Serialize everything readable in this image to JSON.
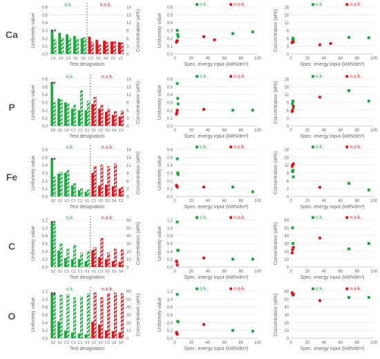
{
  "colors": {
    "ok": "#1aab3f",
    "nok": "#e3141b",
    "axis": "#bfbfbf",
    "grid": "#e6e6e6",
    "text": "#595959"
  },
  "legend": {
    "ok": "o.k.",
    "nok": "n.o.k."
  },
  "axis_labels": {
    "uniformity": "Uniformity value",
    "concentration": "Concentration (at%)",
    "test_designation": "Test designation",
    "energy": "Spec. energy input (kWh/dm²)"
  },
  "row_labels": [
    "Ca",
    "P",
    "Fe",
    "C",
    "O"
  ],
  "chart_data": [
    {
      "type": "bar",
      "element": "Ca",
      "categories": [
        "C1",
        "V3",
        "C2",
        "S1",
        "S2",
        "C3",
        "S3",
        "S4",
        "V2",
        "V1"
      ],
      "status": [
        "ok",
        "ok",
        "ok",
        "ok",
        "ok",
        "nok",
        "nok",
        "nok",
        "nok",
        "nok"
      ],
      "series": [
        {
          "name": "Uniformity value",
          "axis": "left",
          "values": [
            0.3,
            0.27,
            0.25,
            0.23,
            0.2,
            0.22,
            0.18,
            0.17,
            0.16,
            0.15
          ]
        },
        {
          "name": "Concentration (at%)",
          "axis": "right",
          "values": [
            5.5,
            6,
            6,
            5.8,
            6.3,
            4.5,
            3.5,
            4.5,
            4.7,
            4.3
          ]
        }
      ],
      "ylim_left": [
        0,
        0.6
      ],
      "yticks_left": [
        0,
        0.1,
        0.2,
        0.3,
        0.4,
        0.5,
        0.6
      ],
      "ylim_right": [
        0,
        18
      ],
      "yticks_right": [
        0,
        3,
        6,
        9,
        12,
        15,
        18
      ]
    },
    {
      "type": "scatter",
      "element": "Ca",
      "ylabel": "Uniformity value",
      "xlim": [
        0,
        100
      ],
      "ylim": [
        0,
        0.6
      ],
      "xticks": [
        0,
        20,
        40,
        60,
        80,
        100
      ],
      "yticks": [
        0,
        0.1,
        0.2,
        0.3,
        0.4,
        0.5,
        0.6
      ],
      "series": [
        {
          "name": "o.k.",
          "points": [
            [
              3,
              0.3
            ],
            [
              3.5,
              0.25
            ],
            [
              4,
              0.22
            ],
            [
              70,
              0.26
            ],
            [
              94,
              0.28
            ]
          ]
        },
        {
          "name": "n.o.k.",
          "points": [
            [
              2,
              0.15
            ],
            [
              2.5,
              0.16
            ],
            [
              3,
              0.17
            ],
            [
              35,
              0.22
            ],
            [
              48,
              0.18
            ]
          ]
        }
      ]
    },
    {
      "type": "scatter",
      "element": "Ca",
      "ylabel": "Concentration (at%)",
      "xlim": [
        0,
        100
      ],
      "ylim": [
        0,
        18
      ],
      "xticks": [
        0,
        20,
        40,
        60,
        80,
        100
      ],
      "yticks": [
        0,
        3,
        6,
        9,
        12,
        15,
        18
      ],
      "series": [
        {
          "name": "o.k.",
          "points": [
            [
              2,
              5.2
            ],
            [
              2.5,
              6
            ],
            [
              3,
              5.5
            ],
            [
              70,
              6.3
            ],
            [
              94,
              6.2
            ]
          ]
        },
        {
          "name": "n.o.k.",
          "points": [
            [
              1.5,
              4.3
            ],
            [
              2,
              4.5
            ],
            [
              3,
              4.7
            ],
            [
              35,
              3.5
            ],
            [
              48,
              4
            ]
          ]
        }
      ]
    },
    {
      "type": "bar",
      "element": "P",
      "categories": [
        "S2",
        "S1",
        "V3",
        "C1",
        "C2",
        "C1",
        "V1",
        "V2",
        "S3",
        "S4",
        "C3"
      ],
      "status": [
        "ok",
        "ok",
        "ok",
        "ok",
        "ok",
        "ok",
        "nok",
        "nok",
        "nok",
        "nok",
        "nok"
      ],
      "series": [
        {
          "name": "Uniformity value",
          "axis": "left",
          "values": [
            0.55,
            0.35,
            0.3,
            0.22,
            0.2,
            0.2,
            0.28,
            0.22,
            0.18,
            0.14,
            0.12
          ]
        },
        {
          "name": "Concentration (at%)",
          "axis": "right",
          "values": [
            9,
            10,
            8.5,
            8,
            13.5,
            9.5,
            11,
            8,
            6.5,
            5.5,
            5.8
          ]
        }
      ],
      "ylim_left": [
        0,
        0.6
      ],
      "yticks_left": [
        0,
        0.1,
        0.2,
        0.3,
        0.4,
        0.5,
        0.6
      ],
      "ylim_right": [
        0,
        18
      ],
      "yticks_right": [
        0,
        3,
        6,
        9,
        12,
        15,
        18
      ]
    },
    {
      "type": "scatter",
      "element": "P",
      "ylabel": "Uniformity value",
      "xlim": [
        0,
        100
      ],
      "ylim": [
        0,
        0.6
      ],
      "xticks": [
        0,
        20,
        40,
        60,
        80,
        100
      ],
      "yticks": [
        0,
        0.1,
        0.2,
        0.3,
        0.4,
        0.5,
        0.6
      ],
      "series": [
        {
          "name": "o.k.",
          "points": [
            [
              3,
              0.54
            ],
            [
              3.5,
              0.35
            ],
            [
              4,
              0.28
            ],
            [
              70,
              0.2
            ],
            [
              94,
              0.2
            ]
          ]
        },
        {
          "name": "n.o.k.",
          "points": [
            [
              2,
              0.15
            ],
            [
              2.5,
              0.17
            ],
            [
              3,
              0.2
            ],
            [
              35,
              0.21
            ]
          ]
        }
      ]
    },
    {
      "type": "scatter",
      "element": "P",
      "ylabel": "Concentration (at%)",
      "xlim": [
        0,
        100
      ],
      "ylim": [
        0,
        18
      ],
      "xticks": [
        0,
        20,
        40,
        60,
        80,
        100
      ],
      "yticks": [
        0,
        3,
        6,
        9,
        12,
        15,
        18
      ],
      "series": [
        {
          "name": "o.k.",
          "points": [
            [
              2,
              8.5
            ],
            [
              2.5,
              9.5
            ],
            [
              3,
              7
            ],
            [
              70,
              13.5
            ],
            [
              94,
              9.5
            ]
          ]
        },
        {
          "name": "n.o.k.",
          "points": [
            [
              1.5,
              5.5
            ],
            [
              2,
              6
            ],
            [
              3,
              7.5
            ],
            [
              35,
              11
            ]
          ]
        }
      ]
    },
    {
      "type": "bar",
      "element": "Fe",
      "categories": [
        "S2",
        "S1",
        "V3",
        "C1",
        "C2",
        "V1",
        "C1",
        "V2",
        "S3",
        "S4",
        "C3"
      ],
      "status": [
        "ok",
        "ok",
        "ok",
        "ok",
        "ok",
        "ok",
        "nok",
        "nok",
        "nok",
        "nok",
        "nok"
      ],
      "series": [
        {
          "name": "Uniformity value",
          "axis": "left",
          "values": [
            0.48,
            0.29,
            0.3,
            0.14,
            0.08,
            0.06,
            0.3,
            0.14,
            0.15,
            0.13,
            0.1
          ]
        },
        {
          "name": "Concentration (at%)",
          "axis": "right",
          "values": [
            7.5,
            9.5,
            10,
            5,
            3,
            2.5,
            11.5,
            12,
            11.5,
            12.5,
            3.5
          ]
        }
      ],
      "ylim_left": [
        0,
        0.6
      ],
      "yticks_left": [
        0,
        0.1,
        0.2,
        0.3,
        0.4,
        0.5,
        0.6
      ],
      "ylim_right": [
        0,
        18
      ],
      "yticks_right": [
        0,
        3,
        6,
        9,
        12,
        15,
        18
      ]
    },
    {
      "type": "scatter",
      "element": "Fe",
      "ylabel": "Uniformity value",
      "xlim": [
        0,
        100
      ],
      "ylim": [
        0,
        0.6
      ],
      "xticks": [
        0,
        20,
        40,
        60,
        80,
        100
      ],
      "yticks": [
        0,
        0.1,
        0.2,
        0.3,
        0.4,
        0.5,
        0.6
      ],
      "series": [
        {
          "name": "o.k.",
          "points": [
            [
              3,
              0.48
            ],
            [
              3.5,
              0.3
            ],
            [
              4,
              0.28
            ],
            [
              70,
              0.12
            ],
            [
              94,
              0.06
            ]
          ]
        },
        {
          "name": "n.o.k.",
          "points": [
            [
              2,
              0.14
            ],
            [
              2.5,
              0.13
            ],
            [
              3,
              0.12
            ],
            [
              35,
              0.12
            ]
          ]
        }
      ]
    },
    {
      "type": "scatter",
      "element": "Fe",
      "ylabel": "Concentration (at%)",
      "xlim": [
        0,
        100
      ],
      "ylim": [
        0,
        18
      ],
      "xticks": [
        0,
        20,
        40,
        60,
        80,
        100
      ],
      "yticks": [
        0,
        3,
        6,
        9,
        12,
        15,
        18
      ],
      "series": [
        {
          "name": "o.k.",
          "points": [
            [
              2,
              9.5
            ],
            [
              2.5,
              10
            ],
            [
              3,
              7.5
            ],
            [
              70,
              5
            ],
            [
              94,
              2.5
            ]
          ]
        },
        {
          "name": "n.o.k.",
          "points": [
            [
              1.5,
              11.5
            ],
            [
              2,
              12
            ],
            [
              3,
              12.5
            ],
            [
              35,
              3.5
            ]
          ]
        }
      ]
    },
    {
      "type": "bar",
      "element": "C",
      "categories": [
        "S2",
        "S1",
        "C1",
        "C2",
        "C1",
        "V3",
        "V1",
        "C3",
        "V2",
        "S3",
        "S4"
      ],
      "status": [
        "ok",
        "ok",
        "ok",
        "ok",
        "ok",
        "ok",
        "nok",
        "nok",
        "nok",
        "nok",
        "nok"
      ],
      "series": [
        {
          "name": "Uniformity value",
          "axis": "left",
          "values": [
            1.15,
            0.42,
            0.23,
            0.2,
            0.2,
            0.15,
            0.43,
            0.25,
            0.2,
            0.15,
            0.13
          ]
        },
        {
          "name": "Concentration (at%)",
          "axis": "right",
          "values": [
            55,
            30,
            23,
            28,
            18,
            20,
            25,
            37,
            18,
            23,
            22
          ]
        }
      ],
      "ylim_left": [
        0,
        1.2
      ],
      "yticks_left": [
        0,
        0.2,
        0.4,
        0.6,
        0.8,
        1.0,
        1.2
      ],
      "ylim_right": [
        0,
        60
      ],
      "yticks_right": [
        0,
        10,
        20,
        30,
        40,
        50,
        60
      ]
    },
    {
      "type": "scatter",
      "element": "C",
      "ylabel": "Uniformity value",
      "xlim": [
        0,
        100
      ],
      "ylim": [
        0,
        1.2
      ],
      "xticks": [
        0,
        20,
        40,
        60,
        80,
        100
      ],
      "yticks": [
        0,
        0.2,
        0.4,
        0.6,
        0.8,
        1.0,
        1.2
      ],
      "series": [
        {
          "name": "o.k.",
          "points": [
            [
              3,
              1.15
            ],
            [
              3.5,
              0.43
            ],
            [
              4,
              0.42
            ],
            [
              70,
              0.2
            ],
            [
              94,
              0.2
            ]
          ]
        },
        {
          "name": "n.o.k.",
          "points": [
            [
              2,
              0.15
            ],
            [
              2.5,
              0.13
            ],
            [
              3,
              0.05
            ],
            [
              35,
              0.23
            ]
          ]
        }
      ]
    },
    {
      "type": "scatter",
      "element": "C",
      "ylabel": "Concentration (at%)",
      "xlim": [
        0,
        100
      ],
      "ylim": [
        0,
        60
      ],
      "xticks": [
        0,
        20,
        40,
        60,
        80,
        100
      ],
      "yticks": [
        0,
        10,
        20,
        30,
        40,
        50,
        60
      ],
      "series": [
        {
          "name": "o.k.",
          "points": [
            [
              2,
              50
            ],
            [
              2.5,
              30
            ],
            [
              3,
              25
            ],
            [
              70,
              23
            ],
            [
              94,
              30
            ]
          ]
        },
        {
          "name": "n.o.k.",
          "points": [
            [
              1.5,
              18
            ],
            [
              2,
              22
            ],
            [
              3,
              25
            ],
            [
              35,
              37
            ]
          ]
        }
      ]
    },
    {
      "type": "bar",
      "element": "O",
      "categories": [
        "S2",
        "S1",
        "C2",
        "C1",
        "C1",
        "V3",
        "V1",
        "V2",
        "C3",
        "S3",
        "S4"
      ],
      "status": [
        "ok",
        "ok",
        "ok",
        "ok",
        "ok",
        "ok",
        "nok",
        "nok",
        "nok",
        "nok",
        "nok"
      ],
      "series": [
        {
          "name": "Uniformity value",
          "axis": "left",
          "values": [
            1.15,
            0.43,
            0.2,
            0.15,
            0.12,
            0.1,
            0.42,
            0.35,
            0.2,
            0.18,
            0.15
          ]
        },
        {
          "name": "Concentration (at%)",
          "axis": "right",
          "values": [
            57,
            55,
            56,
            52,
            53,
            57,
            58,
            52,
            57,
            58,
            57
          ]
        }
      ],
      "ylim_left": [
        0,
        1.2
      ],
      "yticks_left": [
        0,
        0.2,
        0.4,
        0.6,
        0.8,
        1.0,
        1.2
      ],
      "ylim_right": [
        0,
        60
      ],
      "yticks_right": [
        0,
        10,
        20,
        30,
        40,
        50,
        60
      ]
    },
    {
      "type": "scatter",
      "element": "O",
      "ylabel": "Uniformity value",
      "xlim": [
        0,
        100
      ],
      "ylim": [
        0,
        1.2
      ],
      "xticks": [
        0,
        20,
        40,
        60,
        80,
        100
      ],
      "yticks": [
        0,
        0.2,
        0.4,
        0.6,
        0.8,
        1.0,
        1.2
      ],
      "series": [
        {
          "name": "o.k.",
          "points": [
            [
              3,
              1.12
            ],
            [
              3.5,
              0.43
            ],
            [
              4,
              0.42
            ],
            [
              70,
              0.2
            ],
            [
              94,
              0.18
            ]
          ]
        },
        {
          "name": "n.o.k.",
          "points": [
            [
              2,
              0.15
            ],
            [
              2.5,
              0.12
            ],
            [
              3,
              0.1
            ],
            [
              35,
              0.35
            ]
          ]
        }
      ]
    },
    {
      "type": "scatter",
      "element": "O",
      "ylabel": "Concentration (at%)",
      "xlim": [
        0,
        100
      ],
      "ylim": [
        0,
        60
      ],
      "xticks": [
        0,
        20,
        40,
        60,
        80,
        100
      ],
      "yticks": [
        0,
        10,
        20,
        30,
        40,
        50,
        60
      ],
      "series": [
        {
          "name": "o.k.",
          "points": [
            [
              2,
              57
            ],
            [
              2.5,
              55
            ],
            [
              3,
              56
            ],
            [
              70,
              52
            ],
            [
              94,
              52
            ]
          ]
        },
        {
          "name": "n.o.k.",
          "points": [
            [
              1.5,
              58
            ],
            [
              2,
              57
            ],
            [
              3,
              56
            ],
            [
              35,
              48
            ]
          ]
        }
      ]
    }
  ]
}
